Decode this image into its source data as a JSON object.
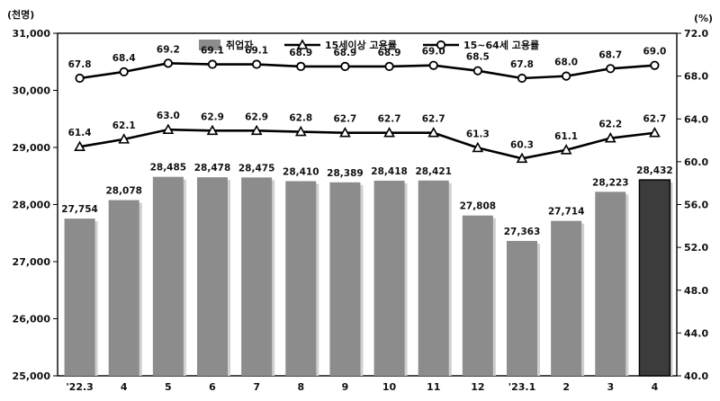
{
  "chart_data": {
    "type": "bar",
    "categories": [
      "'22.3",
      "4",
      "5",
      "6",
      "7",
      "8",
      "9",
      "10",
      "11",
      "12",
      "'23.1",
      "2",
      "3",
      "4"
    ],
    "left_unit": "(천명)",
    "right_unit": "(%)",
    "left_axis": {
      "min": 25000,
      "max": 31000,
      "ticks": [
        25000,
        26000,
        27000,
        28000,
        29000,
        30000,
        31000
      ],
      "tick_labels": [
        "25,000",
        "26,000",
        "27,000",
        "28,000",
        "29,000",
        "30,000",
        "31,000"
      ]
    },
    "right_axis": {
      "min": 40.0,
      "max": 72.0,
      "ticks": [
        40,
        44,
        48,
        52,
        56,
        60,
        64,
        68,
        72
      ],
      "tick_labels": [
        "40.0",
        "44.0",
        "48.0",
        "52.0",
        "56.0",
        "60.0",
        "64.0",
        "68.0",
        "72.0"
      ]
    },
    "series": [
      {
        "name": "취업자",
        "type": "bar",
        "axis": "left",
        "values": [
          27754,
          28078,
          28485,
          28478,
          28475,
          28410,
          28389,
          28418,
          28421,
          27808,
          27363,
          27714,
          28223,
          28432
        ],
        "labels": [
          "27,754",
          "28,078",
          "28,485",
          "28,478",
          "28,475",
          "28,410",
          "28,389",
          "28,418",
          "28,421",
          "27,808",
          "27,363",
          "27,714",
          "28,223",
          "28,432"
        ],
        "color": "#8c8c8c",
        "highlight_last_color": "#3c3c3c"
      },
      {
        "name": "15세이상 고용률",
        "type": "line",
        "marker": "triangle",
        "axis": "right",
        "values": [
          61.4,
          62.1,
          63.0,
          62.9,
          62.9,
          62.8,
          62.7,
          62.7,
          62.7,
          61.3,
          60.3,
          61.1,
          62.2,
          62.7
        ],
        "labels": [
          "61.4",
          "62.1",
          "63.0",
          "62.9",
          "62.9",
          "62.8",
          "62.7",
          "62.7",
          "62.7",
          "61.3",
          "60.3",
          "61.1",
          "62.2",
          "62.7"
        ]
      },
      {
        "name": "15~64세 고용률",
        "type": "line",
        "marker": "circle",
        "axis": "right",
        "values": [
          67.8,
          68.4,
          69.2,
          69.1,
          69.1,
          68.9,
          68.9,
          68.9,
          69.0,
          68.5,
          67.8,
          68.0,
          68.7,
          69.0
        ],
        "labels": [
          "67.8",
          "68.4",
          "69.2",
          "69.1",
          "69.1",
          "68.9",
          "68.9",
          "68.9",
          "69.0",
          "68.5",
          "67.8",
          "68.0",
          "68.7",
          "69.0"
        ]
      }
    ],
    "grid": false,
    "legend": "top"
  }
}
